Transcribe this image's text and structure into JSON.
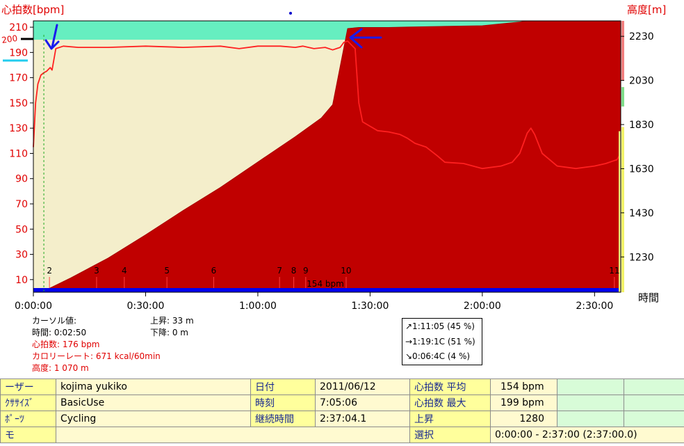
{
  "chart_data": {
    "type": "area",
    "left_axis": {
      "label": "心拍数[bpm]",
      "ticks": [
        10,
        30,
        50,
        70,
        90,
        110,
        130,
        150,
        170,
        190,
        210
      ],
      "range": [
        0,
        215
      ]
    },
    "right_axis": {
      "label": "高度[m]",
      "ticks": [
        1230,
        1430,
        1630,
        1830,
        2030,
        2230
      ],
      "range": [
        1070,
        2300
      ]
    },
    "x_axis": {
      "label": "時間",
      "ticks": [
        "0:00:00",
        "0:30:00",
        "1:00:00",
        "1:30:00",
        "2:00:00",
        "2:30:00"
      ],
      "tick_minutes": [
        0,
        30,
        60,
        90,
        120,
        150
      ],
      "range_minutes": [
        0,
        157
      ]
    },
    "zones": [
      {
        "name": "upper",
        "from": 200,
        "to": 215,
        "color": "#66eec0"
      },
      {
        "name": "target",
        "from": 90,
        "to": 200,
        "color": "#f4eecb"
      }
    ],
    "altitude": {
      "name": "高度",
      "color": "#c00000",
      "x": [
        0,
        2,
        4,
        10,
        20,
        30,
        40,
        50,
        60,
        70,
        77,
        80,
        84,
        87,
        95,
        100,
        110,
        120,
        130,
        132,
        140,
        150,
        157
      ],
      "y": [
        1070,
        1070,
        1085,
        1135,
        1225,
        1330,
        1440,
        1545,
        1660,
        1775,
        1860,
        1920,
        2265,
        2270,
        2270,
        2272,
        2275,
        2278,
        2295,
        2300,
        2300,
        2300,
        2298
      ]
    },
    "heart_rate": {
      "name": "心拍数",
      "color": "#ff2020",
      "x": [
        0,
        0.6,
        1.2,
        2,
        2.8,
        3.5,
        4.5,
        5,
        6,
        8,
        12,
        20,
        30,
        40,
        50,
        55,
        60,
        66,
        70,
        72,
        75,
        78,
        80,
        81,
        82,
        82.5,
        83,
        84,
        85,
        86,
        87,
        88,
        92,
        95,
        98,
        100,
        102,
        105,
        108,
        110,
        115,
        120,
        125,
        128,
        130,
        131,
        132,
        133,
        134,
        136,
        140,
        145,
        150,
        153,
        155,
        156,
        157
      ],
      "y": [
        115,
        150,
        165,
        172,
        174,
        175,
        178,
        176,
        193,
        195,
        194,
        194,
        195,
        194,
        195,
        193,
        195,
        195,
        194,
        195,
        193,
        194,
        192,
        193,
        194,
        196,
        198,
        199,
        196,
        193,
        150,
        135,
        128,
        127,
        125,
        122,
        118,
        115,
        108,
        103,
        102,
        98,
        100,
        103,
        110,
        118,
        126,
        130,
        125,
        110,
        100,
        98,
        100,
        102,
        104,
        105,
        110
      ]
    },
    "laps": {
      "labels": [
        "2",
        "3",
        "4",
        "5",
        "6",
        "7",
        "8",
        "9",
        "10",
        "11"
      ],
      "minutes": [
        4.3,
        16.9,
        24.3,
        35.7,
        48.2,
        65.8,
        69.6,
        72.8,
        83.6,
        155.3
      ]
    },
    "average_line": {
      "label": "154 bpm",
      "color": "#0000ee"
    }
  },
  "cursor_panel": {
    "title": "カーソル値:",
    "time": "時間: 0:02:50",
    "heart_rate": "心拍数: 176 bpm",
    "calorie_rate": "カロリーレート: 671  kcal/60min",
    "altitude": "高度: 1 070  m",
    "ascent": "上昇: 33 m",
    "descent": "下降: 0  m"
  },
  "zone_box": {
    "above": "↗1:11:05  (45 %)",
    "within": "→1:19:1C  (51 %)",
    "below": "↘0:06:4C    (4 %)"
  },
  "summary": {
    "rows": [
      {
        "label1": "ーザー",
        "value1": "kojima yukiko",
        "label2": "日付",
        "value2": "2011/06/12",
        "label3": "心拍数 平均",
        "value3": "154 bpm"
      },
      {
        "label1": "ｸｻｻｲｽﾞ",
        "value1": "BasicUse",
        "label2": "時刻",
        "value2": "7:05:06",
        "label3": "心拍数 最大",
        "value3": "199 bpm"
      },
      {
        "label1": "ﾎﾟｰﾂ",
        "value1": "Cycling",
        "label2": "継続時間",
        "value2": "2:37:04.1",
        "label3": "上昇",
        "value3": "1280"
      },
      {
        "label1": "モ",
        "value1": "",
        "label2": "",
        "value2": "",
        "label3": "選択",
        "value3": "0:00:00 - 2:37:00 (2:37:00.0)"
      }
    ]
  },
  "annotation_labels": {
    "handwritten": "200"
  }
}
